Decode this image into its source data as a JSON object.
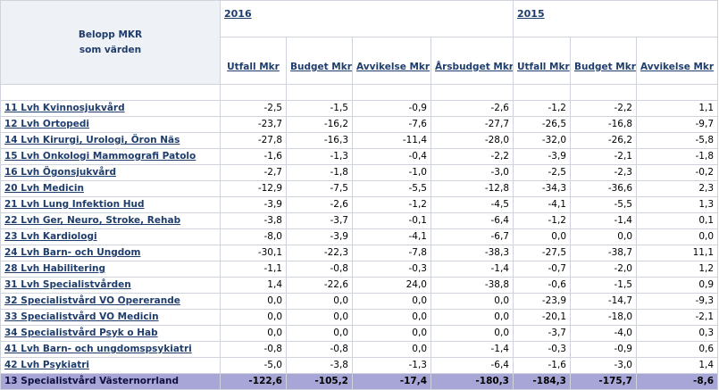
{
  "header": {
    "corner_line1": "Belopp MKR",
    "corner_line2": "som värden",
    "year_current": "2016",
    "year_previous": "2015",
    "columns_current": [
      "Utfall Mkr",
      "Budget Mkr",
      "Avvikelse Mkr",
      "Årsbudget Mkr"
    ],
    "columns_previous": [
      "Utfall Mkr",
      "Budget Mkr",
      "Avvikelse Mkr"
    ]
  },
  "rows": [
    {
      "label": "11 Lvh Kvinnosjukvård",
      "values": [
        "-2,5",
        "-1,5",
        "-0,9",
        "-2,6",
        "-1,2",
        "-2,2",
        "1,1"
      ]
    },
    {
      "label": "12 Lvh Ortopedi",
      "values": [
        "-23,7",
        "-16,2",
        "-7,6",
        "-27,7",
        "-26,5",
        "-16,8",
        "-9,7"
      ]
    },
    {
      "label": "14 Lvh Kirurgi, Urologi, Öron Näs",
      "values": [
        "-27,8",
        "-16,3",
        "-11,4",
        "-28,0",
        "-32,0",
        "-26,2",
        "-5,8"
      ]
    },
    {
      "label": "15 Lvh Onkologi Mammografi Patolo",
      "values": [
        "-1,6",
        "-1,3",
        "-0,4",
        "-2,2",
        "-3,9",
        "-2,1",
        "-1,8"
      ]
    },
    {
      "label": "16 Lvh Ögonsjukvård",
      "values": [
        "-2,7",
        "-1,8",
        "-1,0",
        "-3,0",
        "-2,5",
        "-2,3",
        "-0,2"
      ]
    },
    {
      "label": "20 Lvh Medicin",
      "values": [
        "-12,9",
        "-7,5",
        "-5,5",
        "-12,8",
        "-34,3",
        "-36,6",
        "2,3"
      ]
    },
    {
      "label": "21 Lvh Lung Infektion Hud",
      "values": [
        "-3,9",
        "-2,6",
        "-1,2",
        "-4,5",
        "-4,1",
        "-5,5",
        "1,3"
      ]
    },
    {
      "label": "22 Lvh Ger, Neuro, Stroke, Rehab",
      "values": [
        "-3,8",
        "-3,7",
        "-0,1",
        "-6,4",
        "-1,2",
        "-1,4",
        "0,1"
      ]
    },
    {
      "label": "23 Lvh Kardiologi",
      "values": [
        "-8,0",
        "-3,9",
        "-4,1",
        "-6,7",
        "0,0",
        "0,0",
        "0,0"
      ]
    },
    {
      "label": "24 Lvh Barn- och Ungdom",
      "values": [
        "-30,1",
        "-22,3",
        "-7,8",
        "-38,3",
        "-27,5",
        "-38,7",
        "11,1"
      ]
    },
    {
      "label": "28 Lvh Habilitering",
      "values": [
        "-1,1",
        "-0,8",
        "-0,3",
        "-1,4",
        "-0,7",
        "-2,0",
        "1,2"
      ]
    },
    {
      "label": "31 Lvh Specialistvården",
      "values": [
        "1,4",
        "-22,6",
        "24,0",
        "-38,8",
        "-0,6",
        "-1,5",
        "0,9"
      ]
    },
    {
      "label": "32 Specialistvård VO Opererande",
      "values": [
        "0,0",
        "0,0",
        "0,0",
        "0,0",
        "-23,9",
        "-14,7",
        "-9,3"
      ]
    },
    {
      "label": "33 Specialistvård VO Medicin",
      "values": [
        "0,0",
        "0,0",
        "0,0",
        "0,0",
        "-20,1",
        "-18,0",
        "-2,1"
      ]
    },
    {
      "label": "34 Specialistvård Psyk o Hab",
      "values": [
        "0,0",
        "0,0",
        "0,0",
        "0,0",
        "-3,7",
        "-4,0",
        "0,3"
      ]
    },
    {
      "label": "41 Lvh Barn- och ungdomspsykiatri",
      "values": [
        "-0,8",
        "-0,8",
        "0,0",
        "-1,4",
        "-0,3",
        "-0,9",
        "0,6"
      ]
    },
    {
      "label": "42 Lvh Psykiatri",
      "values": [
        "-5,0",
        "-3,8",
        "-1,3",
        "-6,4",
        "-1,6",
        "-3,0",
        "1,4"
      ]
    }
  ],
  "total": {
    "label": "13  Specialistvård Västernorrland",
    "values": [
      "-122,6",
      "-105,2",
      "-17,4",
      "-180,3",
      "-184,3",
      "-175,7",
      "-8,6"
    ]
  }
}
